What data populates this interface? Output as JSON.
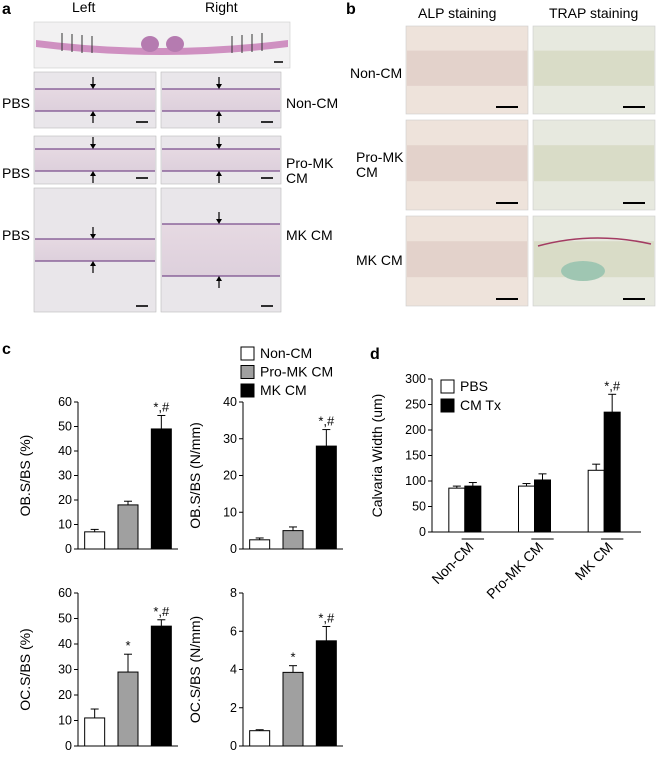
{
  "panel_a": {
    "letter": "a",
    "col_left": "Left",
    "col_right": "Right",
    "row_left_labels": [
      "PBS",
      "PBS",
      "PBS"
    ],
    "row_right_labels": [
      "Non-CM",
      "Pro-MK\nCM",
      "MK CM"
    ]
  },
  "panel_b": {
    "letter": "b",
    "col_1": "ALP staining",
    "col_2": "TRAP staining",
    "row_labels": [
      "Non-CM",
      "Pro-MK\nCM",
      "MK CM"
    ]
  },
  "panel_c": {
    "letter": "c",
    "legend": [
      {
        "label": "Non-CM",
        "color": "#ffffff"
      },
      {
        "label": "Pro-MK CM",
        "color": "#a0a0a0"
      },
      {
        "label": "MK CM",
        "color": "#000000"
      }
    ]
  },
  "panel_d": {
    "letter": "d",
    "legend": [
      {
        "label": "PBS",
        "color": "#ffffff"
      },
      {
        "label": "CM Tx",
        "color": "#000000"
      }
    ]
  },
  "chart_data": [
    {
      "type": "bar",
      "id": "c1",
      "ylabel": "OB.S/BS (%)",
      "ylim": [
        0,
        60
      ],
      "yticks": [
        0,
        10,
        20,
        30,
        40,
        50,
        60
      ],
      "categories": [
        "Non-CM",
        "Pro-MK CM",
        "MK CM"
      ],
      "values": [
        7,
        18,
        49
      ],
      "errors": [
        1,
        1.5,
        5.5
      ],
      "marks": [
        "",
        "",
        "*,#"
      ],
      "colors": [
        "#ffffff",
        "#a0a0a0",
        "#000000"
      ]
    },
    {
      "type": "bar",
      "id": "c2",
      "ylabel": "OB.S/BS (N/mm)",
      "ylim": [
        0,
        40
      ],
      "yticks": [
        0,
        10,
        20,
        30,
        40
      ],
      "categories": [
        "Non-CM",
        "Pro-MK CM",
        "MK CM"
      ],
      "values": [
        2.5,
        5,
        28
      ],
      "errors": [
        0.5,
        1,
        4.5
      ],
      "marks": [
        "",
        "",
        "*,#"
      ],
      "colors": [
        "#ffffff",
        "#a0a0a0",
        "#000000"
      ]
    },
    {
      "type": "bar",
      "id": "c3",
      "ylabel": "OC.S/BS (%)",
      "ylim": [
        0,
        60
      ],
      "yticks": [
        0,
        10,
        20,
        30,
        40,
        50,
        60
      ],
      "categories": [
        "Non-CM",
        "Pro-MK CM",
        "MK CM"
      ],
      "values": [
        11,
        29,
        47
      ],
      "errors": [
        3.5,
        7,
        2.5
      ],
      "marks": [
        "",
        "*",
        "*,#"
      ],
      "colors": [
        "#ffffff",
        "#a0a0a0",
        "#000000"
      ]
    },
    {
      "type": "bar",
      "id": "c4",
      "ylabel": "OC.S/BS (N/mm)",
      "ylim": [
        0,
        8
      ],
      "yticks": [
        0,
        2,
        4,
        6,
        8
      ],
      "categories": [
        "Non-CM",
        "Pro-MK CM",
        "MK CM"
      ],
      "values": [
        0.8,
        3.85,
        5.5
      ],
      "errors": [
        0.05,
        0.35,
        0.75
      ],
      "marks": [
        "",
        "*",
        "*,#"
      ],
      "colors": [
        "#ffffff",
        "#a0a0a0",
        "#000000"
      ]
    },
    {
      "type": "bar",
      "id": "d",
      "ylabel": "Calvaria Width (um)",
      "ylim": [
        0,
        300
      ],
      "yticks": [
        0,
        50,
        100,
        150,
        200,
        250,
        300
      ],
      "categories": [
        "Non-CM",
        "Pro-MK CM",
        "MK CM"
      ],
      "series": [
        {
          "name": "PBS",
          "values": [
            86,
            90,
            121
          ],
          "errors": [
            4,
            5,
            12
          ],
          "color": "#ffffff"
        },
        {
          "name": "CM Tx",
          "values": [
            90,
            102,
            235
          ],
          "errors": [
            7,
            12,
            35
          ],
          "color": "#000000"
        }
      ],
      "marks": [
        "",
        "",
        "*,#"
      ]
    }
  ]
}
